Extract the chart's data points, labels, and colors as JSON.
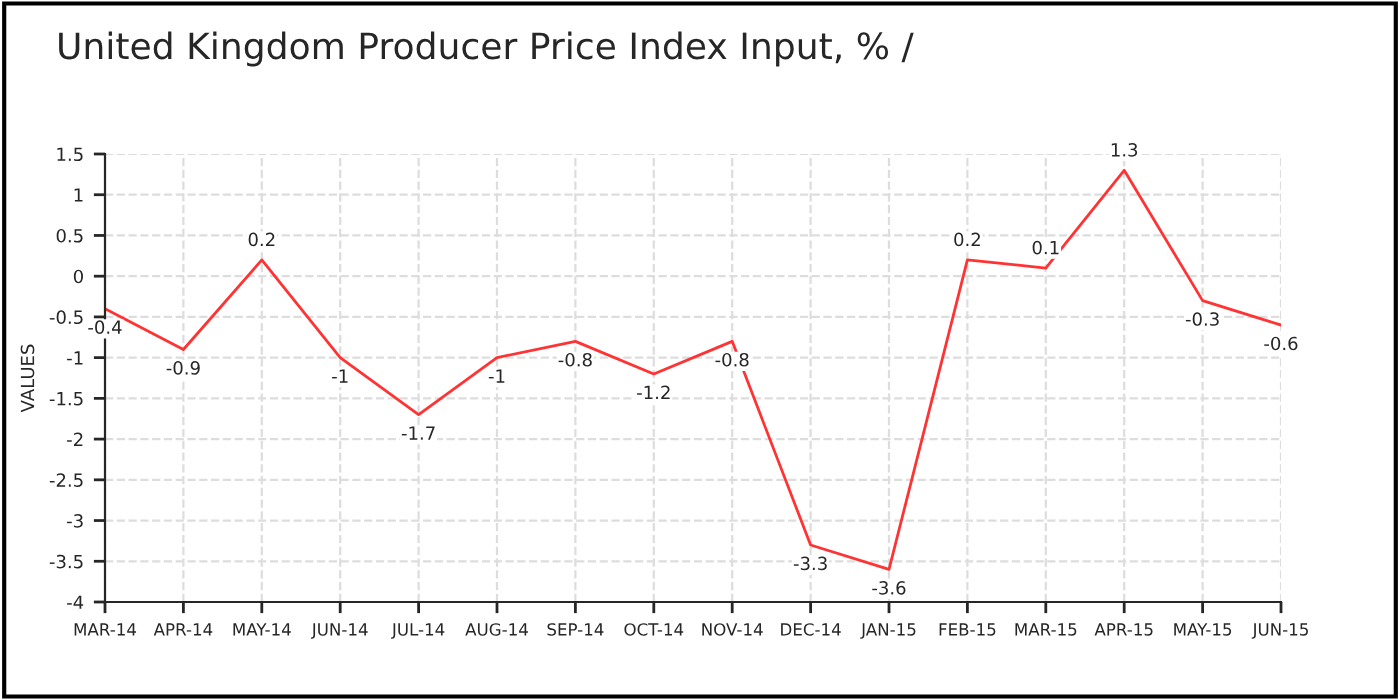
{
  "chart_data": {
    "type": "line",
    "title": "United Kingdom Producer Price Index Input, % /",
    "ylabel": "VALUES",
    "categories": [
      "MAR-14",
      "APR-14",
      "MAY-14",
      "JUN-14",
      "JUL-14",
      "AUG-14",
      "SEP-14",
      "OCT-14",
      "NOV-14",
      "DEC-14",
      "JAN-15",
      "FEB-15",
      "MAR-15",
      "APR-15",
      "MAY-15",
      "JUN-15"
    ],
    "series": [
      {
        "color": "#ff3333",
        "values": [
          -0.4,
          -0.9,
          0.2,
          -1,
          -1.7,
          -1,
          -0.8,
          -1.2,
          -0.8,
          -3.3,
          -3.6,
          0.2,
          0.1,
          1.3,
          -0.3,
          -0.6
        ]
      }
    ],
    "ylim": [
      -4,
      1.5
    ],
    "yticks": [
      -4,
      -3.5,
      -3,
      -2.5,
      -2,
      -1.5,
      -1,
      -0.5,
      0,
      0.5,
      1,
      1.5
    ],
    "grid": true,
    "data_labels": true,
    "marker": "none",
    "line_style": "solid"
  }
}
